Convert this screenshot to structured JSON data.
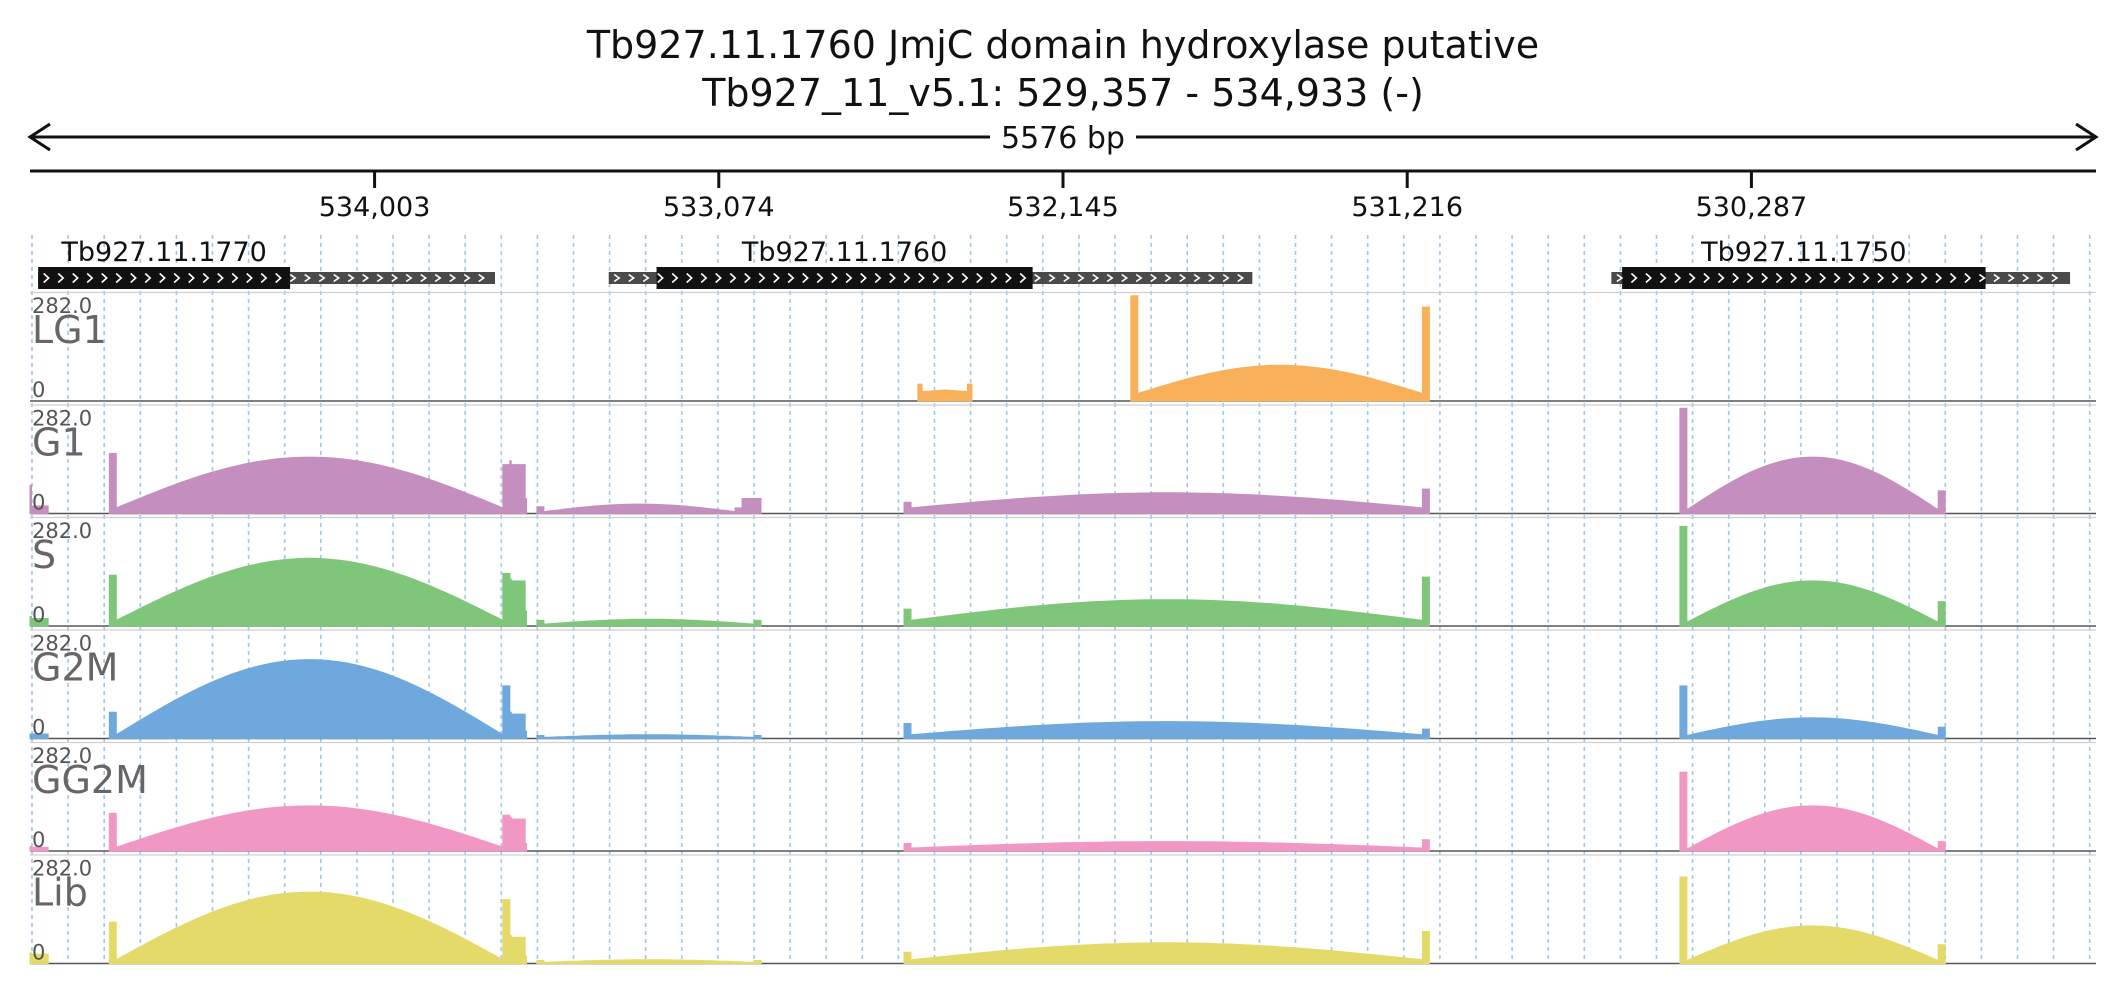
{
  "header": {
    "title": "Tb927.11.1760  JmjC domain  hydroxylase  putative",
    "locus": "Tb927_11_v5.1: 529,357 - 534,933 (-)",
    "length_label": "5576 bp"
  },
  "chart_data": {
    "type": "area",
    "title": "Tb927.11.1760  JmjC domain  hydroxylase  putative",
    "subtitle": "Tb927_11_v5.1: 529,357 - 534,933 (-)",
    "region": {
      "chrom": "Tb927_11_v5.1",
      "start": 529357,
      "end": 534933,
      "strand": "-"
    },
    "x_axis": {
      "reversed": true,
      "ticks": [
        534003,
        533074,
        532145,
        531216,
        530287
      ],
      "tick_labels": [
        "534,003",
        "533,074",
        "532,145",
        "531,216",
        "530,287"
      ]
    },
    "grid": true,
    "y_range": [
      0,
      282.0
    ],
    "y_max_label": "282.0",
    "y_min_label": "0",
    "genes": [
      {
        "name": "Tb927.11.1770",
        "start": 533678,
        "end": 534911,
        "cds_start": 534231,
        "cds_end": 534911
      },
      {
        "name": "Tb927.11.1760",
        "start": 531634,
        "end": 533371,
        "cds_start": 532227,
        "cds_end": 533242
      },
      {
        "name": "Tb927.11.1750",
        "start": 529427,
        "end": 530665,
        "cds_start": 529655,
        "cds_end": 530636
      }
    ],
    "series": [
      {
        "name": "LG1",
        "color": "#f8b15a",
        "blocks": [
          {
            "start": 532537,
            "end": 532391,
            "shape": "flat",
            "peak": 40,
            "base": 25,
            "edges": [
              45,
              45
            ]
          },
          {
            "start": 531962,
            "end": 531156,
            "shape": "hump",
            "peak": 95,
            "base": 20,
            "edges": [
              280,
              250
            ]
          }
        ]
      },
      {
        "name": "G1",
        "color": "#c48ebf",
        "blocks": [
          {
            "start": 534933,
            "end": 534884,
            "shape": "flat",
            "peak": 20,
            "base": 20,
            "edges": [
              75,
              20
            ]
          },
          {
            "start": 534719,
            "end": 533638,
            "shape": "hump",
            "peak": 150,
            "base": 15,
            "edges": [
              160,
              130
            ]
          },
          {
            "start": 533638,
            "end": 533593,
            "shape": "flat",
            "peak": 130,
            "base": 130,
            "edges": [
              140,
              40
            ]
          },
          {
            "start": 533565,
            "end": 533011,
            "shape": "hump",
            "peak": 25,
            "base": 5,
            "edges": [
              18,
              15
            ]
          },
          {
            "start": 533011,
            "end": 532960,
            "shape": "flat",
            "peak": 40,
            "base": 40,
            "edges": [
              40,
              40
            ]
          },
          {
            "start": 532574,
            "end": 531156,
            "shape": "hump",
            "peak": 55,
            "base": 15,
            "edges": [
              30,
              65
            ]
          },
          {
            "start": 530480,
            "end": 529764,
            "shape": "hump",
            "peak": 150,
            "base": 10,
            "edges": [
              280,
              60
            ]
          }
        ]
      },
      {
        "name": "S",
        "color": "#7fc67a",
        "blocks": [
          {
            "start": 534933,
            "end": 534884,
            "shape": "flat",
            "peak": 20,
            "base": 20,
            "edges": [
              25,
              20
            ]
          },
          {
            "start": 534719,
            "end": 533638,
            "shape": "hump",
            "peak": 180,
            "base": 15,
            "edges": [
              135,
              140
            ]
          },
          {
            "start": 533638,
            "end": 533593,
            "shape": "flat",
            "peak": 120,
            "base": 120,
            "edges": [
              125,
              40
            ]
          },
          {
            "start": 533565,
            "end": 532960,
            "shape": "hump",
            "peak": 18,
            "base": 5,
            "edges": [
              15,
              15
            ]
          },
          {
            "start": 532574,
            "end": 531156,
            "shape": "hump",
            "peak": 70,
            "base": 15,
            "edges": [
              45,
              130
            ]
          },
          {
            "start": 530480,
            "end": 529764,
            "shape": "hump",
            "peak": 120,
            "base": 10,
            "edges": [
              265,
              65
            ]
          }
        ]
      },
      {
        "name": "G2M",
        "color": "#6fa8dc",
        "blocks": [
          {
            "start": 534933,
            "end": 534884,
            "shape": "flat",
            "peak": 12,
            "base": 12,
            "edges": [
              12,
              12
            ]
          },
          {
            "start": 534719,
            "end": 533638,
            "shape": "hump",
            "peak": 210,
            "base": 10,
            "edges": [
              70,
              140
            ]
          },
          {
            "start": 533638,
            "end": 533593,
            "shape": "flat",
            "peak": 65,
            "base": 65,
            "edges": [
              70,
              20
            ]
          },
          {
            "start": 533565,
            "end": 532960,
            "shape": "hump",
            "peak": 10,
            "base": 3,
            "edges": [
              8,
              8
            ]
          },
          {
            "start": 532574,
            "end": 531156,
            "shape": "hump",
            "peak": 45,
            "base": 10,
            "edges": [
              40,
              25
            ]
          },
          {
            "start": 530480,
            "end": 529764,
            "shape": "hump",
            "peak": 55,
            "base": 8,
            "edges": [
              140,
              30
            ]
          }
        ]
      },
      {
        "name": "GG2M",
        "color": "#f197c4",
        "blocks": [
          {
            "start": 534933,
            "end": 534884,
            "shape": "flat",
            "peak": 10,
            "base": 10,
            "edges": [
              12,
              10
            ]
          },
          {
            "start": 534719,
            "end": 533638,
            "shape": "hump",
            "peak": 120,
            "base": 10,
            "edges": [
              100,
              95
            ]
          },
          {
            "start": 533638,
            "end": 533593,
            "shape": "flat",
            "peak": 85,
            "base": 85,
            "edges": [
              90,
              20
            ]
          },
          {
            "start": 532574,
            "end": 531156,
            "shape": "hump",
            "peak": 25,
            "base": 8,
            "edges": [
              20,
              30
            ]
          },
          {
            "start": 530480,
            "end": 529764,
            "shape": "hump",
            "peak": 120,
            "base": 5,
            "edges": [
              210,
              25
            ]
          }
        ]
      },
      {
        "name": "Lib",
        "color": "#e3da6a",
        "blocks": [
          {
            "start": 534933,
            "end": 534884,
            "shape": "flat",
            "peak": 25,
            "base": 25,
            "edges": [
              28,
              25
            ]
          },
          {
            "start": 534719,
            "end": 533638,
            "shape": "hump",
            "peak": 190,
            "base": 10,
            "edges": [
              110,
              170
            ]
          },
          {
            "start": 533638,
            "end": 533593,
            "shape": "flat",
            "peak": 70,
            "base": 70,
            "edges": [
              75,
              20
            ]
          },
          {
            "start": 533565,
            "end": 532960,
            "shape": "hump",
            "peak": 10,
            "base": 3,
            "edges": [
              8,
              8
            ]
          },
          {
            "start": 532574,
            "end": 531156,
            "shape": "hump",
            "peak": 55,
            "base": 10,
            "edges": [
              30,
              85
            ]
          },
          {
            "start": 530480,
            "end": 529764,
            "shape": "hump",
            "peak": 100,
            "base": 8,
            "edges": [
              230,
              50
            ]
          }
        ]
      }
    ]
  }
}
